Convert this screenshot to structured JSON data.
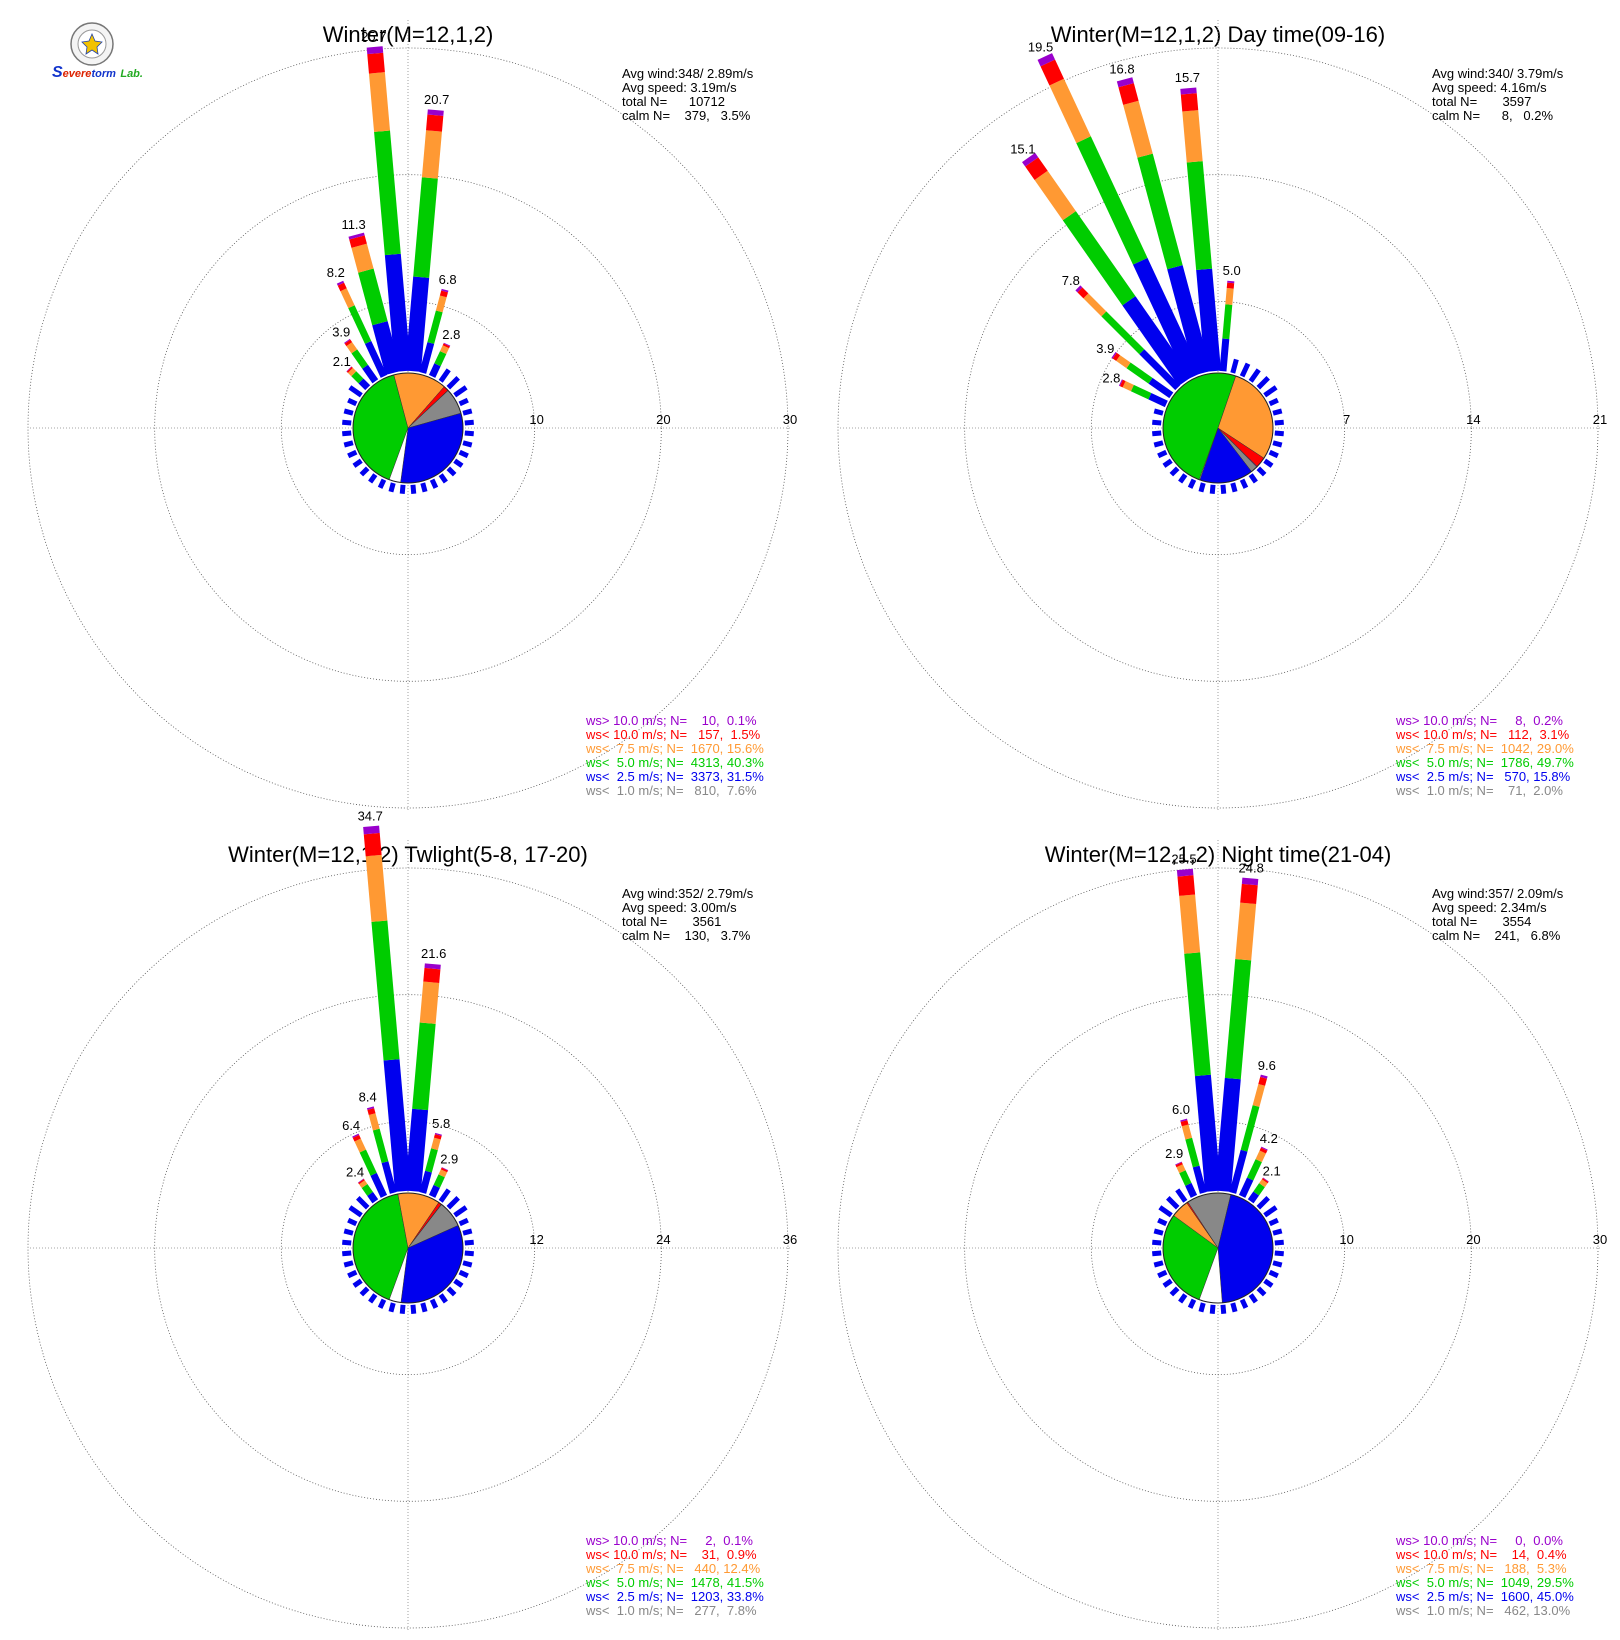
{
  "logo": {
    "text_s": "S",
    "text_severe": "evere",
    "text_storm": "torm",
    "text_lab": "Lab."
  },
  "colors": {
    "gt10": "#9900cc",
    "lt10": "#ff0000",
    "lt7_5": "#ff9933",
    "lt5": "#00cc00",
    "lt2_5": "#0000ee",
    "lt1": "#888888"
  },
  "chart_data": [
    {
      "type": "wind-rose",
      "title": "Winter(M=12,1,2)",
      "rings": [
        10,
        20,
        30
      ],
      "stats": {
        "avg_wind": "Avg wind:348/ 2.89m/s",
        "avg_speed": "Avg speed: 3.19m/s",
        "total": "total N=      10712",
        "calm": "calm N=    379,   3.5%"
      },
      "bar_labels": [
        {
          "dir": 315,
          "value": 2.1
        },
        {
          "dir": 325,
          "value": 3.9
        },
        {
          "dir": 335,
          "value": 8.2
        },
        {
          "dir": 345,
          "value": 11.3
        },
        {
          "dir": 355,
          "value": 25.7
        },
        {
          "dir": 5,
          "value": 20.7
        },
        {
          "dir": 15,
          "value": 6.8
        },
        {
          "dir": 25,
          "value": 2.8
        }
      ],
      "pie": {
        "gt10": 0.1,
        "lt10": 1.5,
        "lt7_5": 15.6,
        "lt5": 40.3,
        "lt2_5": 31.5,
        "lt1": 7.6
      },
      "legend": [
        {
          "key": "gt10",
          "text": "ws> 10.0 m/s; N=    10,  0.1%"
        },
        {
          "key": "lt10",
          "text": "ws< 10.0 m/s; N=   157,  1.5%"
        },
        {
          "key": "lt7_5",
          "text": "ws<  7.5 m/s; N=  1670, 15.6%"
        },
        {
          "key": "lt5",
          "text": "ws<  5.0 m/s; N=  4313, 40.3%"
        },
        {
          "key": "lt2_5",
          "text": "ws<  2.5 m/s; N=  3373, 31.5%"
        },
        {
          "key": "lt1",
          "text": "ws<  1.0 m/s; N=   810,  7.6%"
        }
      ]
    },
    {
      "type": "wind-rose",
      "title": "Winter(M=12,1,2) Day time(09-16)",
      "rings": [
        7,
        14,
        21
      ],
      "stats": {
        "avg_wind": "Avg wind:340/ 3.79m/s",
        "avg_speed": "Avg speed: 4.16m/s",
        "total": "total N=       3597",
        "calm": "calm N=      8,   0.2%"
      },
      "bar_labels": [
        {
          "dir": 295,
          "value": 2.8
        },
        {
          "dir": 305,
          "value": 3.9
        },
        {
          "dir": 315,
          "value": 7.8
        },
        {
          "dir": 325,
          "value": 15.1
        },
        {
          "dir": 335,
          "value": 19.5
        },
        {
          "dir": 345,
          "value": 16.8
        },
        {
          "dir": 355,
          "value": 15.7
        },
        {
          "dir": 5,
          "value": 5.0
        }
      ],
      "pie": {
        "gt10": 0.2,
        "lt10": 3.1,
        "lt7_5": 29.0,
        "lt5": 49.7,
        "lt2_5": 15.8,
        "lt1": 2.0
      },
      "legend": [
        {
          "key": "gt10",
          "text": "ws> 10.0 m/s; N=     8,  0.2%"
        },
        {
          "key": "lt10",
          "text": "ws< 10.0 m/s; N=   112,  3.1%"
        },
        {
          "key": "lt7_5",
          "text": "ws<  7.5 m/s; N=  1042, 29.0%"
        },
        {
          "key": "lt5",
          "text": "ws<  5.0 m/s; N=  1786, 49.7%"
        },
        {
          "key": "lt2_5",
          "text": "ws<  2.5 m/s; N=   570, 15.8%"
        },
        {
          "key": "lt1",
          "text": "ws<  1.0 m/s; N=    71,  2.0%"
        }
      ]
    },
    {
      "type": "wind-rose",
      "title": "Winter(M=12,1,2) Twlight(5-8, 17-20)",
      "rings": [
        12,
        24,
        36
      ],
      "stats": {
        "avg_wind": "Avg wind:352/ 2.79m/s",
        "avg_speed": "Avg speed: 3.00m/s",
        "total": "total N=       3561",
        "calm": "calm N=    130,   3.7%"
      },
      "bar_labels": [
        {
          "dir": 325,
          "value": 2.4
        },
        {
          "dir": 335,
          "value": 6.4
        },
        {
          "dir": 345,
          "value": 8.4
        },
        {
          "dir": 355,
          "value": 34.7
        },
        {
          "dir": 5,
          "value": 21.6
        },
        {
          "dir": 15,
          "value": 5.8
        },
        {
          "dir": 25,
          "value": 2.9
        }
      ],
      "pie": {
        "gt10": 0.1,
        "lt10": 0.9,
        "lt7_5": 12.4,
        "lt5": 41.5,
        "lt2_5": 33.8,
        "lt1": 7.8
      },
      "legend": [
        {
          "key": "gt10",
          "text": "ws> 10.0 m/s; N=     2,  0.1%"
        },
        {
          "key": "lt10",
          "text": "ws< 10.0 m/s; N=    31,  0.9%"
        },
        {
          "key": "lt7_5",
          "text": "ws<  7.5 m/s; N=   440, 12.4%"
        },
        {
          "key": "lt5",
          "text": "ws<  5.0 m/s; N=  1478, 41.5%"
        },
        {
          "key": "lt2_5",
          "text": "ws<  2.5 m/s; N=  1203, 33.8%"
        },
        {
          "key": "lt1",
          "text": "ws<  1.0 m/s; N=   277,  7.8%"
        }
      ]
    },
    {
      "type": "wind-rose",
      "title": "Winter(M=12,1,2) Night time(21-04)",
      "rings": [
        10,
        20,
        30
      ],
      "stats": {
        "avg_wind": "Avg wind:357/ 2.09m/s",
        "avg_speed": "Avg speed: 2.34m/s",
        "total": "total N=       3554",
        "calm": "calm N=    241,   6.8%"
      },
      "bar_labels": [
        {
          "dir": 335,
          "value": 2.9
        },
        {
          "dir": 345,
          "value": 6.0
        },
        {
          "dir": 355,
          "value": 25.5
        },
        {
          "dir": 5,
          "value": 24.8
        },
        {
          "dir": 15,
          "value": 9.6
        },
        {
          "dir": 25,
          "value": 4.2
        },
        {
          "dir": 35,
          "value": 2.1
        }
      ],
      "pie": {
        "gt10": 0.0,
        "lt10": 0.4,
        "lt7_5": 5.3,
        "lt5": 29.5,
        "lt2_5": 45.0,
        "lt1": 13.0
      },
      "legend": [
        {
          "key": "gt10",
          "text": "ws> 10.0 m/s; N=     0,  0.0%"
        },
        {
          "key": "lt10",
          "text": "ws< 10.0 m/s; N=    14,  0.4%"
        },
        {
          "key": "lt7_5",
          "text": "ws<  7.5 m/s; N=   188,  5.3%"
        },
        {
          "key": "lt5",
          "text": "ws<  5.0 m/s; N=  1049, 29.5%"
        },
        {
          "key": "lt2_5",
          "text": "ws<  2.5 m/s; N=  1600, 45.0%"
        },
        {
          "key": "lt1",
          "text": "ws<  1.0 m/s; N=   462, 13.0%"
        }
      ]
    }
  ]
}
